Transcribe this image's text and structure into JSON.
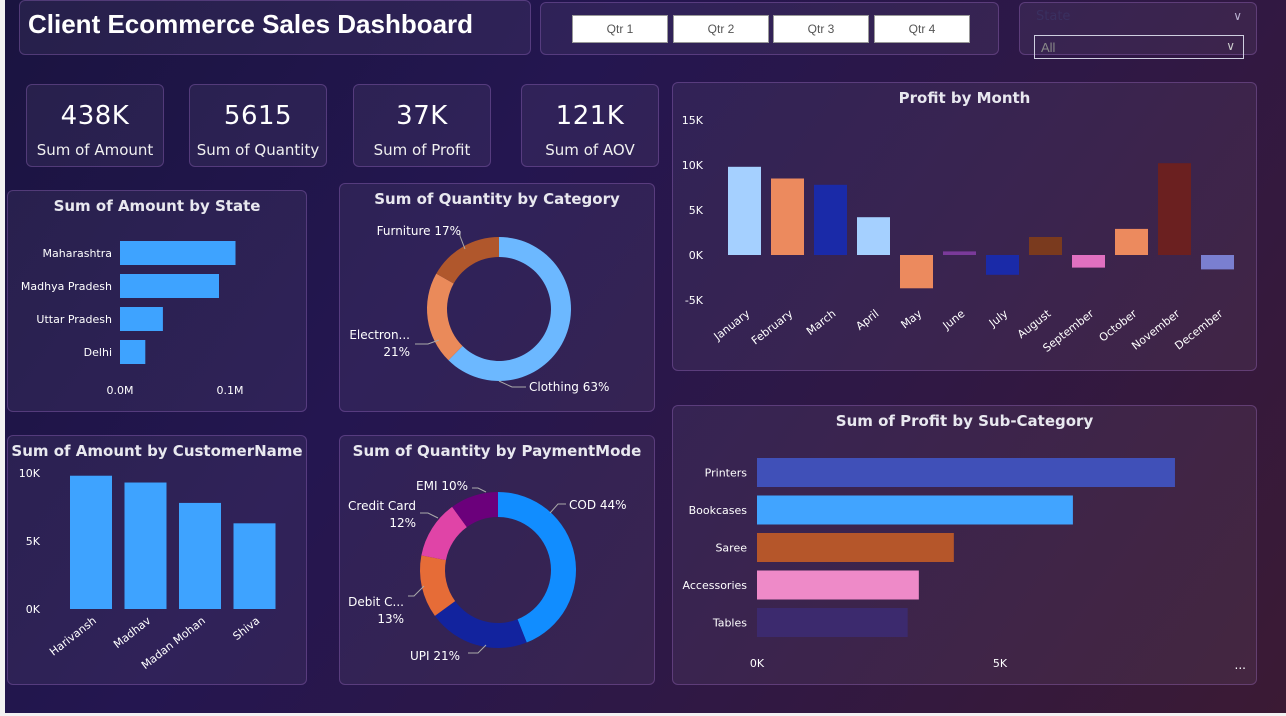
{
  "dashboard": {
    "title": "Client Ecommerce Sales Dashboard"
  },
  "quarters": [
    "Qtr 1",
    "Qtr 2",
    "Qtr 3",
    "Qtr 4"
  ],
  "slicer": {
    "label": "State",
    "value": "All",
    "chevron_icon": "chevron-down-icon"
  },
  "kpis": [
    {
      "value": "438K",
      "label": "Sum of Amount"
    },
    {
      "value": "5615",
      "label": "Sum of Quantity"
    },
    {
      "value": "37K",
      "label": "Sum of Profit"
    },
    {
      "value": "121K",
      "label": "Sum of AOV"
    }
  ],
  "charts": {
    "state": {
      "title": "Sum of Amount by State"
    },
    "category": {
      "title": "Sum of Quantity by Category"
    },
    "month": {
      "title": "Profit by Month"
    },
    "customer": {
      "title": "Sum of Amount by CustomerName"
    },
    "payment": {
      "title": "Sum of Quantity by PaymentMode"
    },
    "subcategory": {
      "title": "Sum of Profit by Sub-Category",
      "more_label": "..."
    }
  },
  "chart_data": [
    {
      "id": "state",
      "type": "bar",
      "orientation": "horizontal",
      "title": "Sum of Amount by State",
      "categories": [
        "Maharashtra",
        "Madhya Pradesh",
        "Uttar Pradesh",
        "Delhi"
      ],
      "values": [
        105000,
        90000,
        39000,
        23000
      ],
      "xticks": [
        "0.0M",
        "0.1M"
      ],
      "xtick_values": [
        0,
        100000
      ],
      "color": "#3ea3ff"
    },
    {
      "id": "category",
      "type": "pie",
      "donut": true,
      "title": "Sum of Quantity by Category",
      "slices": [
        {
          "label": "Clothing",
          "pct_label": "63%",
          "value": 63,
          "color": "#6cb8ff"
        },
        {
          "label": "Electron...",
          "pct_label": "21%",
          "value": 21,
          "color": "#ea8a5a"
        },
        {
          "label": "Furniture",
          "pct_label": "17%",
          "value": 17,
          "color": "#b0572c"
        }
      ]
    },
    {
      "id": "month",
      "type": "bar",
      "title": "Profit by Month",
      "categories": [
        "January",
        "February",
        "March",
        "April",
        "May",
        "June",
        "July",
        "August",
        "September",
        "October",
        "November",
        "December"
      ],
      "values": [
        9800,
        8500,
        7800,
        4200,
        -3700,
        400,
        -2200,
        2000,
        -1400,
        2900,
        10200,
        -1600
      ],
      "colors": [
        "#a5d0ff",
        "#ec8a5e",
        "#1a2aa8",
        "#a5d0ff",
        "#ec8a5e",
        "#7a3a9a",
        "#1a2aa8",
        "#7a3a1e",
        "#e070c0",
        "#ec8a5e",
        "#6b2020",
        "#7a7fd0"
      ],
      "ylim": [
        -5000,
        15000
      ],
      "yticks": [
        "15K",
        "10K",
        "5K",
        "0K",
        "-5K"
      ],
      "ytick_values": [
        15000,
        10000,
        5000,
        0,
        -5000
      ]
    },
    {
      "id": "customer",
      "type": "bar",
      "title": "Sum of Amount by CustomerName",
      "categories": [
        "Harivansh",
        "Madhav",
        "Madan Mohan",
        "Shiva"
      ],
      "values": [
        9800,
        9300,
        7800,
        6300
      ],
      "ylim": [
        0,
        10000
      ],
      "yticks": [
        "10K",
        "5K",
        "0K"
      ],
      "ytick_values": [
        10000,
        5000,
        0
      ],
      "color": "#3ea3ff"
    },
    {
      "id": "payment",
      "type": "pie",
      "donut": true,
      "title": "Sum of Quantity by PaymentMode",
      "slices": [
        {
          "label": "COD",
          "pct_label": "44%",
          "value": 44,
          "color": "#118dff"
        },
        {
          "label": "UPI",
          "pct_label": "21%",
          "value": 21,
          "color": "#12239e"
        },
        {
          "label": "Debit C...",
          "pct_label": "13%",
          "value": 13,
          "color": "#e66c37"
        },
        {
          "label": "Credit Card",
          "pct_label": "12%",
          "value": 12,
          "color": "#e044a7"
        },
        {
          "label": "EMI",
          "pct_label": "10%",
          "value": 10,
          "color": "#6b007b"
        }
      ]
    },
    {
      "id": "subcategory",
      "type": "bar",
      "orientation": "horizontal",
      "title": "Sum of Profit by Sub-Category",
      "categories": [
        "Printers",
        "Bookcases",
        "Saree",
        "Accessories",
        "Tables"
      ],
      "values": [
        8600,
        6500,
        4050,
        3330,
        3100
      ],
      "colors": [
        "#4050b8",
        "#41a4ff",
        "#b5562a",
        "#ee8ac8",
        "#3c2a6e"
      ],
      "xticks": [
        "0K",
        "5K"
      ],
      "xtick_values": [
        0,
        5000
      ]
    }
  ]
}
